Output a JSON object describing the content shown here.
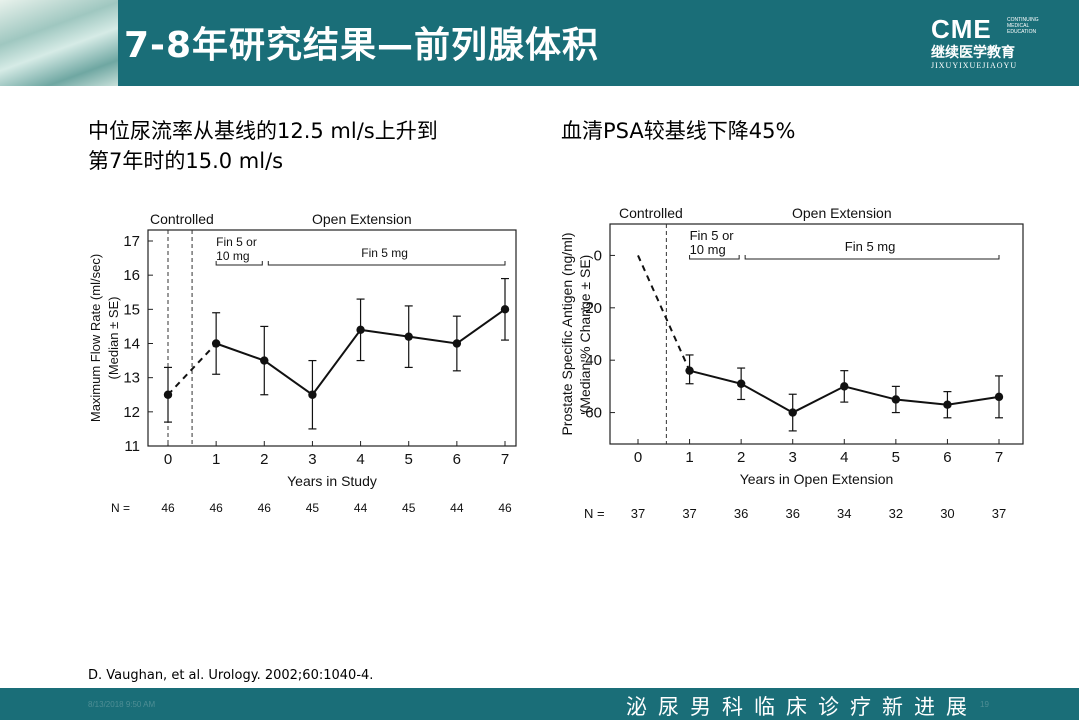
{
  "header": {
    "title": "7-8年研究结果—前列腺体积",
    "logo": {
      "big": "CME",
      "small_lines": [
        "CONTINUING",
        "MEDICAL",
        "EDUCATION"
      ],
      "cn": "继续医学教育",
      "en": "JIXUYIXUEJIAOYU"
    }
  },
  "subtitles": {
    "left_line1": "中位尿流率从基线的12.5 ml/s上升到",
    "left_line2": "第7年时的15.0 ml/s",
    "right": "血清PSA较基线下降45%"
  },
  "chart_data": [
    {
      "type": "line",
      "period_labels": {
        "controlled": "Controlled",
        "open": "Open Extension"
      },
      "bracket_labels": {
        "first": "Fin 5 or\n10 mg",
        "second": "Fin 5 mg"
      },
      "ylabel": "Maximum Flow Rate (ml/sec)",
      "ylabel2": "(Median ± SE)",
      "xlabel": "Years in Study",
      "x": [
        0,
        1,
        2,
        3,
        4,
        5,
        6,
        7
      ],
      "y": [
        12.5,
        14.0,
        13.5,
        12.5,
        14.4,
        14.2,
        14.0,
        15.0
      ],
      "err_low": [
        11.7,
        13.1,
        12.5,
        11.5,
        13.5,
        13.3,
        13.2,
        14.1
      ],
      "err_high": [
        13.3,
        14.9,
        14.5,
        13.5,
        15.3,
        15.1,
        14.8,
        15.9
      ],
      "xlim": [
        0,
        7
      ],
      "ylim": [
        11,
        17
      ],
      "yticks": [
        11,
        12,
        13,
        14,
        15,
        16,
        17
      ],
      "n_label": "N =",
      "n": [
        46,
        46,
        46,
        45,
        44,
        45,
        44,
        46
      ]
    },
    {
      "type": "line",
      "period_labels": {
        "controlled": "Controlled",
        "open": "Open Extension"
      },
      "bracket_labels": {
        "first": "Fin 5 or\n10 mg",
        "second": "Fin 5 mg"
      },
      "ylabel": "Prostate Specific Antigen (ng/ml)",
      "ylabel2": "(Median % Change ± SE)",
      "xlabel": "Years in Open Extension",
      "x": [
        0,
        1,
        2,
        3,
        4,
        5,
        6,
        7
      ],
      "y": [
        0,
        -44,
        -49,
        -60,
        -50,
        -55,
        -57,
        -54
      ],
      "err_low": [
        null,
        -49,
        -55,
        -67,
        -56,
        -60,
        -62,
        -62
      ],
      "err_high": [
        null,
        -38,
        -43,
        -53,
        -44,
        -50,
        -52,
        -46
      ],
      "xlim": [
        0,
        7
      ],
      "ylim": [
        -72,
        12
      ],
      "yticks": [
        0,
        -20,
        -40,
        -60
      ],
      "n_label": "N =",
      "n": [
        37,
        37,
        36,
        36,
        34,
        32,
        30,
        37
      ]
    }
  ],
  "citation": "D. Vaughan, et al. Urology. 2002;60:1040-4.",
  "footer": {
    "date": "8/13/2018 9:50 AM",
    "page": "19",
    "slogan": "泌尿男科临床诊疗新进展"
  }
}
